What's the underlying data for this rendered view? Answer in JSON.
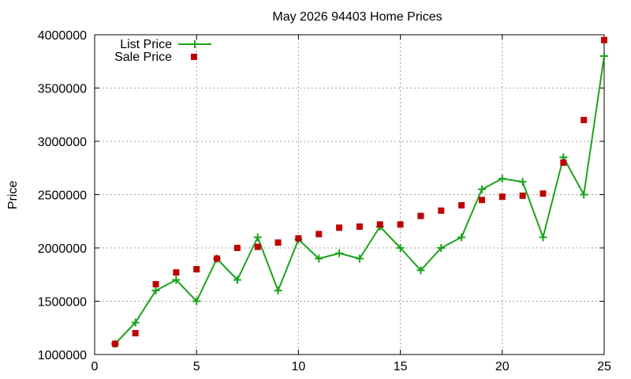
{
  "chart_data": {
    "type": "line",
    "title": "May 2026 94403 Home Prices",
    "xlabel": "",
    "ylabel": "Price",
    "xlim": [
      0,
      25
    ],
    "ylim": [
      1000000,
      4000000
    ],
    "xticks": [
      0,
      5,
      10,
      15,
      20,
      25
    ],
    "yticks": [
      1000000,
      1500000,
      2000000,
      2500000,
      3000000,
      3500000,
      4000000
    ],
    "xtick_labels": [
      "0",
      "5",
      "10",
      "15",
      "20",
      "25"
    ],
    "ytick_labels": [
      "1000000",
      "1500000",
      "2000000",
      "2500000",
      "3000000",
      "3500000",
      "4000000"
    ],
    "grid": true,
    "legend_position": "top-left",
    "series": [
      {
        "name": "List Price",
        "style": "linespoints",
        "color": "#1aa31a",
        "marker": "plus",
        "x": [
          1,
          2,
          3,
          4,
          5,
          6,
          7,
          8,
          9,
          10,
          11,
          12,
          13,
          14,
          15,
          16,
          17,
          18,
          19,
          20,
          21,
          22,
          23,
          24,
          25
        ],
        "values": [
          1100000,
          1300000,
          1600000,
          1700000,
          1500000,
          1900000,
          1700000,
          2100000,
          1600000,
          2080000,
          1900000,
          1950000,
          1900000,
          2200000,
          2000000,
          1790000,
          2000000,
          2100000,
          2550000,
          2650000,
          2620000,
          2100000,
          2850000,
          2500000,
          3800000
        ]
      },
      {
        "name": "Sale Price",
        "style": "points",
        "color": "#c00000",
        "marker": "square",
        "x": [
          1,
          2,
          3,
          4,
          5,
          6,
          7,
          8,
          9,
          10,
          11,
          12,
          13,
          14,
          15,
          16,
          17,
          18,
          19,
          20,
          21,
          22,
          23,
          24,
          25
        ],
        "values": [
          1100000,
          1200000,
          1660000,
          1770000,
          1800000,
          1900000,
          2000000,
          2010000,
          2050000,
          2090000,
          2130000,
          2190000,
          2200000,
          2220000,
          2220000,
          2300000,
          2350000,
          2400000,
          2450000,
          2480000,
          2490000,
          2510000,
          2800000,
          3200000,
          3950000
        ]
      }
    ]
  }
}
